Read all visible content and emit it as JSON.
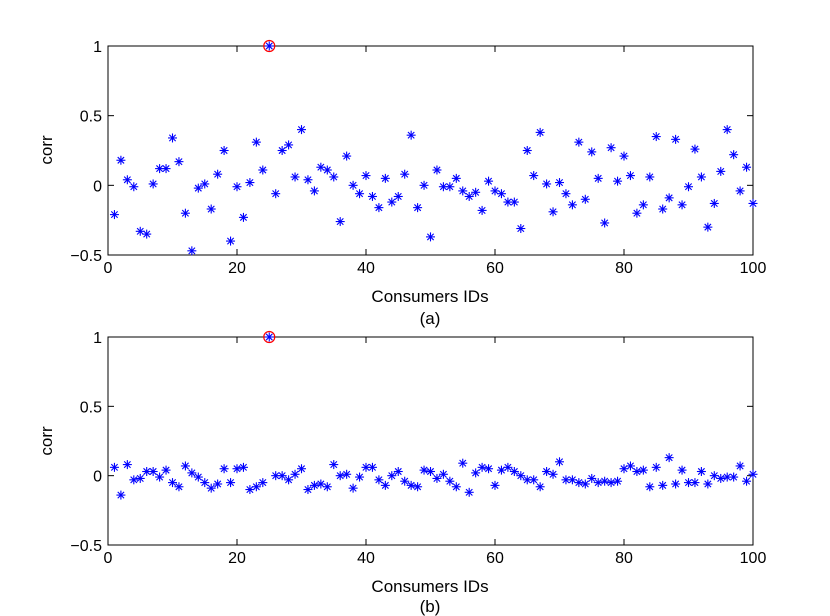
{
  "chart_data": [
    {
      "type": "scatter",
      "panel_label": "(a)",
      "xlabel": "Consumers IDs",
      "ylabel": "corr",
      "xlim": [
        0,
        100
      ],
      "ylim": [
        -0.5,
        1
      ],
      "xticks": [
        0,
        20,
        40,
        60,
        80,
        100
      ],
      "yticks": [
        -0.5,
        0,
        0.5,
        1
      ],
      "xtick_labels": [
        "0",
        "20",
        "40",
        "60",
        "80",
        "100"
      ],
      "ytick_labels": [
        "−0.5",
        "0",
        "0.5",
        "1"
      ],
      "grid": false,
      "marker": "asterisk",
      "marker_color": "#0000ff",
      "highlight": {
        "x": 25,
        "y": 1,
        "color": "#ff0000"
      },
      "x": [
        1,
        2,
        3,
        4,
        5,
        6,
        7,
        8,
        9,
        10,
        11,
        12,
        13,
        14,
        15,
        16,
        17,
        18,
        19,
        20,
        21,
        22,
        23,
        24,
        25,
        26,
        27,
        28,
        29,
        30,
        31,
        32,
        33,
        34,
        35,
        36,
        37,
        38,
        39,
        40,
        41,
        42,
        43,
        44,
        45,
        46,
        47,
        48,
        49,
        50,
        51,
        52,
        53,
        54,
        55,
        56,
        57,
        58,
        59,
        60,
        61,
        62,
        63,
        64,
        65,
        66,
        67,
        68,
        69,
        70,
        71,
        72,
        73,
        74,
        75,
        76,
        77,
        78,
        79,
        80,
        81,
        82,
        83,
        84,
        85,
        86,
        87,
        88,
        89,
        90,
        91,
        92,
        93,
        94,
        95,
        96,
        97,
        98,
        99,
        100
      ],
      "y": [
        -0.21,
        0.18,
        0.04,
        -0.01,
        -0.33,
        -0.35,
        0.01,
        0.12,
        0.12,
        0.34,
        0.17,
        -0.2,
        -0.47,
        -0.02,
        0.01,
        -0.17,
        0.08,
        0.25,
        -0.4,
        -0.01,
        -0.23,
        0.02,
        0.31,
        0.11,
        1.0,
        -0.06,
        0.25,
        0.29,
        0.06,
        0.4,
        0.04,
        -0.04,
        0.13,
        0.11,
        0.06,
        -0.26,
        0.21,
        0.0,
        -0.06,
        0.07,
        -0.08,
        -0.16,
        0.05,
        -0.12,
        -0.08,
        0.08,
        0.36,
        -0.16,
        0.0,
        -0.37,
        0.11,
        -0.01,
        -0.01,
        0.05,
        -0.04,
        -0.08,
        -0.05,
        -0.18,
        0.03,
        -0.04,
        -0.06,
        -0.12,
        -0.12,
        -0.31,
        0.25,
        0.07,
        0.38,
        0.01,
        -0.19,
        0.02,
        -0.06,
        -0.14,
        0.31,
        -0.1,
        0.24,
        0.05,
        -0.27,
        0.27,
        0.03,
        0.21,
        0.07,
        -0.2,
        -0.14,
        0.06,
        0.35,
        -0.17,
        -0.09,
        0.33,
        -0.14,
        -0.01,
        0.26,
        0.06,
        -0.3,
        -0.13,
        0.1,
        0.4,
        0.22,
        -0.04,
        0.13,
        -0.13
      ]
    },
    {
      "type": "scatter",
      "panel_label": "(b)",
      "xlabel": "Consumers IDs",
      "ylabel": "corr",
      "xlim": [
        0,
        100
      ],
      "ylim": [
        -0.5,
        1
      ],
      "xticks": [
        0,
        20,
        40,
        60,
        80,
        100
      ],
      "yticks": [
        -0.5,
        0,
        0.5,
        1
      ],
      "xtick_labels": [
        "0",
        "20",
        "40",
        "60",
        "80",
        "100"
      ],
      "ytick_labels": [
        "−0.5",
        "0",
        "0.5",
        "1"
      ],
      "grid": false,
      "marker": "asterisk",
      "marker_color": "#0000ff",
      "highlight": {
        "x": 25,
        "y": 1,
        "color": "#ff0000"
      },
      "x": [
        1,
        2,
        3,
        4,
        5,
        6,
        7,
        8,
        9,
        10,
        11,
        12,
        13,
        14,
        15,
        16,
        17,
        18,
        19,
        20,
        21,
        22,
        23,
        24,
        25,
        26,
        27,
        28,
        29,
        30,
        31,
        32,
        33,
        34,
        35,
        36,
        37,
        38,
        39,
        40,
        41,
        42,
        43,
        44,
        45,
        46,
        47,
        48,
        49,
        50,
        51,
        52,
        53,
        54,
        55,
        56,
        57,
        58,
        59,
        60,
        61,
        62,
        63,
        64,
        65,
        66,
        67,
        68,
        69,
        70,
        71,
        72,
        73,
        74,
        75,
        76,
        77,
        78,
        79,
        80,
        81,
        82,
        83,
        84,
        85,
        86,
        87,
        88,
        89,
        90,
        91,
        92,
        93,
        94,
        95,
        96,
        97,
        98,
        99,
        100
      ],
      "y": [
        0.06,
        -0.14,
        0.08,
        -0.03,
        -0.02,
        0.03,
        0.03,
        -0.01,
        0.04,
        -0.05,
        -0.08,
        0.07,
        0.02,
        -0.01,
        -0.05,
        -0.09,
        -0.06,
        0.05,
        -0.05,
        0.05,
        0.06,
        -0.1,
        -0.08,
        -0.05,
        1.0,
        0.0,
        0.0,
        -0.03,
        0.01,
        0.05,
        -0.1,
        -0.07,
        -0.06,
        -0.08,
        0.08,
        0.0,
        0.01,
        -0.09,
        -0.01,
        0.06,
        0.06,
        -0.03,
        -0.07,
        0.0,
        0.03,
        -0.04,
        -0.07,
        -0.08,
        0.04,
        0.03,
        -0.02,
        0.01,
        -0.04,
        -0.08,
        0.09,
        -0.12,
        0.02,
        0.06,
        0.05,
        -0.07,
        0.04,
        0.06,
        0.03,
        0.0,
        -0.03,
        -0.03,
        -0.08,
        0.03,
        0.01,
        0.1,
        -0.03,
        -0.03,
        -0.05,
        -0.06,
        -0.02,
        -0.05,
        -0.04,
        -0.05,
        -0.04,
        0.05,
        0.07,
        0.03,
        0.04,
        -0.08,
        0.06,
        -0.07,
        0.13,
        -0.06,
        0.04,
        -0.05,
        -0.05,
        0.03,
        -0.06,
        0.0,
        -0.02,
        -0.01,
        -0.01,
        0.07,
        -0.04,
        0.01
      ]
    }
  ]
}
